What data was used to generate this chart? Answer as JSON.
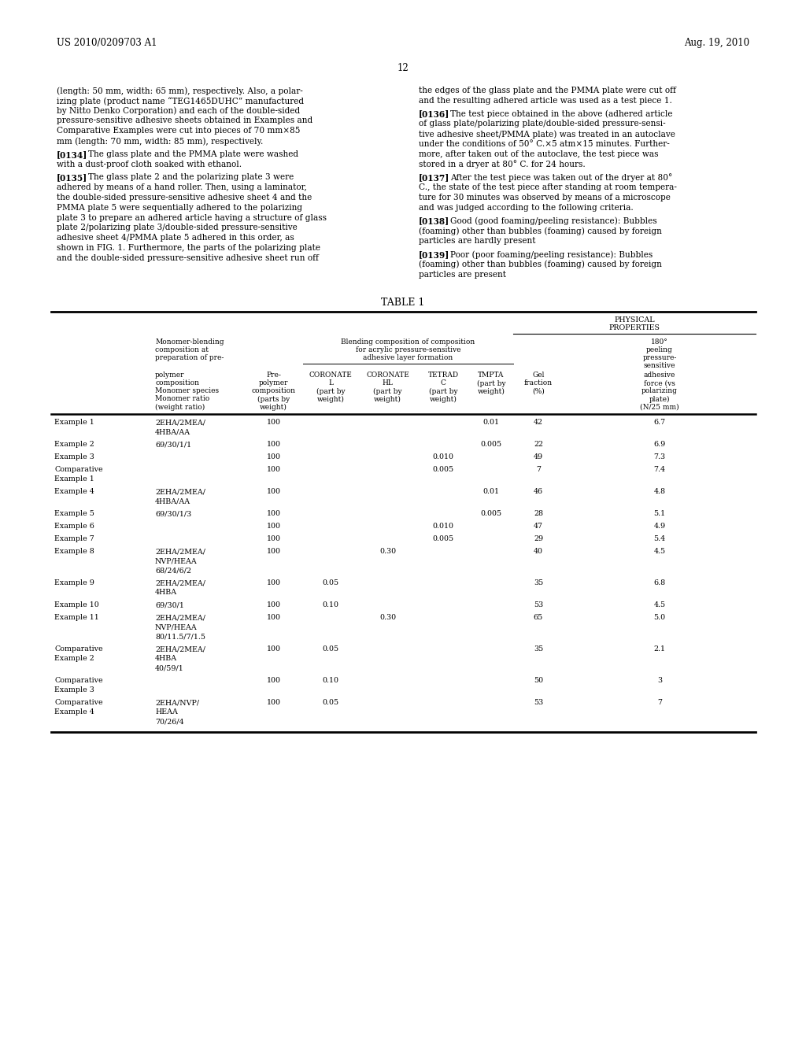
{
  "page_header_left": "US 2010/0209703 A1",
  "page_header_right": "Aug. 19, 2010",
  "page_number": "12",
  "background_color": "#ffffff",
  "left_top": "(length: 50 mm, width: 65 mm), respectively. Also, a polar-\nizing plate (product name “TEG1465DUHC” manufactured\nby Nitto Denko Corporation) and each of the double-sided\npressure-sensitive adhesive sheets obtained in Examples and\nComparative Examples were cut into pieces of 70 mm×85\nmm (length: 70 mm, width: 85 mm), respectively.",
  "right_top": "the edges of the glass plate and the PMMA plate were cut off\nand the resulting adhered article was used as a test piece 1.",
  "left_paras": [
    {
      "id": "[0134]",
      "indent": "    ",
      "lines": [
        "The glass plate and the PMMA plate were washed",
        "with a dust-proof cloth soaked with ethanol."
      ]
    },
    {
      "id": "[0135]",
      "indent": "    ",
      "lines": [
        "The glass plate 2 and the polarizing plate 3 were",
        "adhered by means of a hand roller. Then, using a laminator,",
        "the double-sided pressure-sensitive adhesive sheet 4 and the",
        "PMMA plate 5 were sequentially adhered to the polarizing",
        "plate 3 to prepare an adhered article having a structure of glass",
        "plate 2/polarizing plate 3/double-sided pressure-sensitive",
        "adhesive sheet 4/PMMA plate 5 adhered in this order, as",
        "shown in FIG. 1. Furthermore, the parts of the polarizing plate",
        "and the double-sided pressure-sensitive adhesive sheet run off"
      ]
    }
  ],
  "right_paras": [
    {
      "id": "[0136]",
      "indent": "    ",
      "lines": [
        "The test piece obtained in the above (adhered article",
        "of glass plate/polarizing plate/double-sided pressure-sensi-",
        "tive adhesive sheet/PMMA plate) was treated in an autoclave",
        "under the conditions of 50° C.×5 atm×15 minutes. Further-",
        "more, after taken out of the autoclave, the test piece was",
        "stored in a dryer at 80° C. for 24 hours."
      ]
    },
    {
      "id": "[0137]",
      "indent": "    ",
      "lines": [
        "After the test piece was taken out of the dryer at 80°",
        "C., the state of the test piece after standing at room tempera-",
        "ture for 30 minutes was observed by means of a microscope",
        "and was judged according to the following criteria."
      ]
    },
    {
      "id": "[0138]",
      "indent": "    ",
      "lines": [
        "Good (good foaming/peeling resistance): Bubbles",
        "(foaming) other than bubbles (foaming) caused by foreign",
        "particles are hardly present"
      ]
    },
    {
      "id": "[0139]",
      "indent": "    ",
      "lines": [
        "Poor (poor foaming/peeling resistance): Bubbles",
        "(foaming) other than bubbles (foaming) caused by foreign",
        "particles are present"
      ]
    }
  ],
  "table_title": "TABLE 1",
  "rows": [
    [
      "Example 1",
      "2EHA/2MEA/\n4HBA/AA",
      "100",
      "",
      "",
      "",
      "0.01",
      "42",
      "6.7"
    ],
    [
      "Example 2",
      "69/30/1/1",
      "100",
      "",
      "",
      "",
      "0.005",
      "22",
      "6.9"
    ],
    [
      "Example 3",
      "",
      "100",
      "",
      "",
      "0.010",
      "",
      "49",
      "7.3"
    ],
    [
      "Comparative\nExample 1",
      "",
      "100",
      "",
      "",
      "0.005",
      "",
      "7",
      "7.4"
    ],
    [
      "Example 4",
      "2EHA/2MEA/\n4HBA/AA",
      "100",
      "",
      "",
      "",
      "0.01",
      "46",
      "4.8"
    ],
    [
      "Example 5",
      "69/30/1/3",
      "100",
      "",
      "",
      "",
      "0.005",
      "28",
      "5.1"
    ],
    [
      "Example 6",
      "",
      "100",
      "",
      "",
      "0.010",
      "",
      "47",
      "4.9"
    ],
    [
      "Example 7",
      "",
      "100",
      "",
      "",
      "0.005",
      "",
      "29",
      "5.4"
    ],
    [
      "Example 8",
      "2EHA/2MEA/\nNVP/HEAA\n68/24/6/2",
      "100",
      "",
      "0.30",
      "",
      "",
      "40",
      "4.5"
    ],
    [
      "Example 9",
      "2EHA/2MEA/\n4HBA",
      "100",
      "0.05",
      "",
      "",
      "",
      "35",
      "6.8"
    ],
    [
      "Example 10",
      "69/30/1",
      "100",
      "0.10",
      "",
      "",
      "",
      "53",
      "4.5"
    ],
    [
      "Example 11",
      "2EHA/2MEA/\nNVP/HEAA\n80/11.5/7/1.5",
      "100",
      "",
      "0.30",
      "",
      "",
      "65",
      "5.0"
    ],
    [
      "Comparative\nExample 2",
      "2EHA/2MEA/\n4HBA\n40/59/1",
      "100",
      "0.05",
      "",
      "",
      "",
      "35",
      "2.1"
    ],
    [
      "Comparative\nExample 3",
      "",
      "100",
      "0.10",
      "",
      "",
      "",
      "50",
      "3"
    ],
    [
      "Comparative\nExample 4",
      "2EHA/NVP/\nHEAA\n70/26/4",
      "100",
      "0.05",
      "",
      "",
      "",
      "53",
      "7"
    ]
  ]
}
